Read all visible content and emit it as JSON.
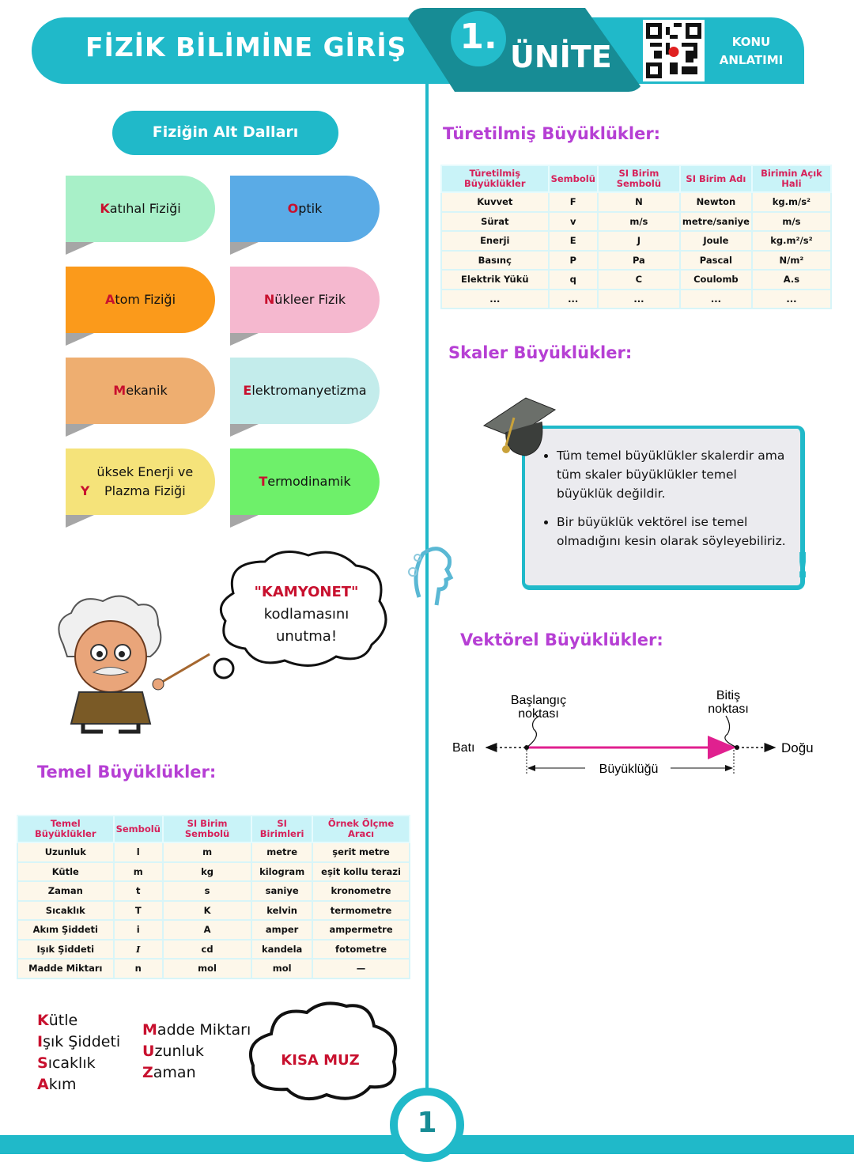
{
  "header": {
    "title": "FİZİK BİLİMİNE GİRİŞ",
    "unit_number": "1.",
    "unit_label": "ÜNİTE",
    "konu": "KONU",
    "anlatimi": "ANLATIMI"
  },
  "branches": {
    "title": "Fiziğin Alt Dalları",
    "items": [
      {
        "first": "K",
        "rest": "atıhal Fiziği",
        "color": "#a8f0c8"
      },
      {
        "first": "O",
        "rest": "ptik",
        "color": "#5aabe6"
      },
      {
        "first": "A",
        "rest": "tom Fiziği",
        "color": "#fb9a1b"
      },
      {
        "first": "N",
        "rest": "ükleer Fizik",
        "color": "#f5b8cf"
      },
      {
        "first": "M",
        "rest": "ekanik",
        "color": "#eeae70"
      },
      {
        "first": "E",
        "rest": "lektromanyetizma",
        "color": "#c3eceb"
      },
      {
        "first": "Y",
        "rest": "üksek Enerji ve Plazma Fiziği",
        "color": "#f5e37a"
      },
      {
        "first": "T",
        "rest": "ermodinamik",
        "color": "#6ef06a"
      }
    ]
  },
  "thought": {
    "line1": "\"KAMYONET\"",
    "line2": "kodlamasını",
    "line3": "unutma!"
  },
  "basic": {
    "title": "Temel Büyüklükler:",
    "headers": [
      "Temel Büyüklükler",
      "Sembolü",
      "SI Birim Sembolü",
      "SI Birimleri",
      "Örnek Ölçme Aracı"
    ],
    "rows": [
      [
        "Uzunluk",
        "l",
        "m",
        "metre",
        "şerit metre"
      ],
      [
        "Kütle",
        "m",
        "kg",
        "kilogram",
        "eşit kollu terazi"
      ],
      [
        "Zaman",
        "t",
        "s",
        "saniye",
        "kronometre"
      ],
      [
        "Sıcaklık",
        "T",
        "K",
        "kelvin",
        "termometre"
      ],
      [
        "Akım Şiddeti",
        "i",
        "A",
        "amper",
        "ampermetre"
      ],
      [
        "Işık Şiddeti",
        "I",
        "cd",
        "kandela",
        "fotometre"
      ],
      [
        "Madde Miktarı",
        "n",
        "mol",
        "mol",
        "—"
      ]
    ]
  },
  "mnemonic": {
    "left": [
      {
        "first": "K",
        "rest": "ütle"
      },
      {
        "first": "I",
        "rest": "şık Şiddeti"
      },
      {
        "first": "S",
        "rest": "ıcaklık"
      },
      {
        "first": "A",
        "rest": "kım"
      }
    ],
    "middle": [
      {
        "first": "M",
        "rest": "adde Miktarı"
      },
      {
        "first": "U",
        "rest": "zunluk"
      },
      {
        "first": "Z",
        "rest": "aman"
      }
    ],
    "cloud": "KISA MUZ"
  },
  "derived": {
    "title": "Türetilmiş Büyüklükler:",
    "headers": [
      "Türetilmiş Büyüklükler",
      "Sembolü",
      "SI Birim Sembolü",
      "SI Birim Adı",
      "Birimin Açık Hali"
    ],
    "rows": [
      [
        "Kuvvet",
        "F",
        "N",
        "Newton",
        "kg.m/s²"
      ],
      [
        "Sürat",
        "v",
        "m/s",
        "metre/saniye",
        "m/s"
      ],
      [
        "Enerji",
        "E",
        "J",
        "Joule",
        "kg.m²/s²"
      ],
      [
        "Basınç",
        "P",
        "Pa",
        "Pascal",
        "N/m²"
      ],
      [
        "Elektrik Yükü",
        "q",
        "C",
        "Coulomb",
        "A.s"
      ],
      [
        "...",
        "...",
        "...",
        "...",
        "..."
      ]
    ]
  },
  "scalar": {
    "title": "Skaler Büyüklükler:",
    "bullets": [
      "Tüm temel büyüklükler skalerdir ama tüm skaler büyüklükler temel büyüklük değildir.",
      "Bir büyüklük vektörel ise temel olmadığını kesin olarak söyleyebiliriz."
    ]
  },
  "vector": {
    "title": "Vektörel Büyüklükler:",
    "start": [
      "Başlangıç",
      "noktası"
    ],
    "end": [
      "Bitiş",
      "noktası"
    ],
    "west": "Batı",
    "east": "Doğu",
    "magnitude": "Büyüklüğü"
  },
  "page_number": "1",
  "colors": {
    "teal": "#20b9c9",
    "dark_teal": "#178c95",
    "purple": "#b63fd4",
    "red": "#c8102e",
    "vector": "#e0208f"
  }
}
